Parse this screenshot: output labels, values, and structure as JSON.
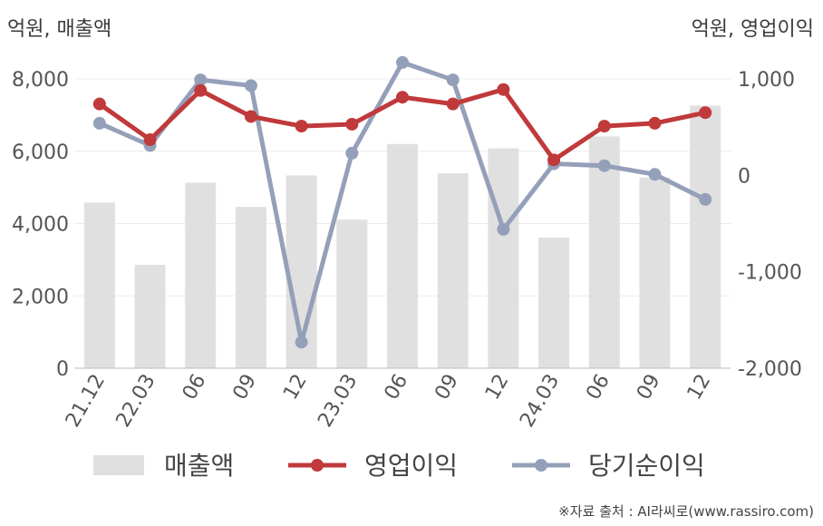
{
  "units": {
    "left": "억원, 매출액",
    "right": "억원, 영업이익"
  },
  "source": "※자료 출처 : AI라씨로(www.rassiro.com)",
  "colors": {
    "revenue": "#e0e0e0",
    "operating_profit": "#c0393b",
    "net_income": "#94a0b9"
  },
  "chart_data": {
    "type": "bar",
    "categories": [
      "21.12",
      "22.03",
      "06",
      "09",
      "12",
      "23.03",
      "06",
      "09",
      "12",
      "24.03",
      "06",
      "09",
      "12"
    ],
    "y_left": {
      "min": 0,
      "max": 8000,
      "ticks": [
        0,
        2000,
        4000,
        6000,
        8000
      ],
      "tick_labels": [
        "0",
        "2,000",
        "4,000",
        "6,000",
        "8,000"
      ]
    },
    "y_right": {
      "min": -2000,
      "max": 1000,
      "ticks": [
        -2000,
        -1000,
        0,
        1000
      ],
      "tick_labels": [
        "-2,000",
        "-1,000",
        "0",
        "1,000"
      ]
    },
    "series": [
      {
        "name": "매출액",
        "type": "bar",
        "axis": "left",
        "values": [
          4580,
          2860,
          5130,
          4460,
          5330,
          4110,
          6200,
          5390,
          6080,
          3610,
          6410,
          5270,
          7260
        ]
      },
      {
        "name": "영업이익",
        "type": "line",
        "axis": "right",
        "values": [
          740,
          370,
          880,
          610,
          510,
          530,
          810,
          740,
          890,
          160,
          510,
          540,
          650
        ]
      },
      {
        "name": "당기순이익",
        "type": "line",
        "axis": "right",
        "values": [
          540,
          310,
          990,
          930,
          -1730,
          230,
          1170,
          990,
          -560,
          120,
          100,
          10,
          -250
        ]
      }
    ],
    "grid": true,
    "legend_position": "bottom"
  }
}
